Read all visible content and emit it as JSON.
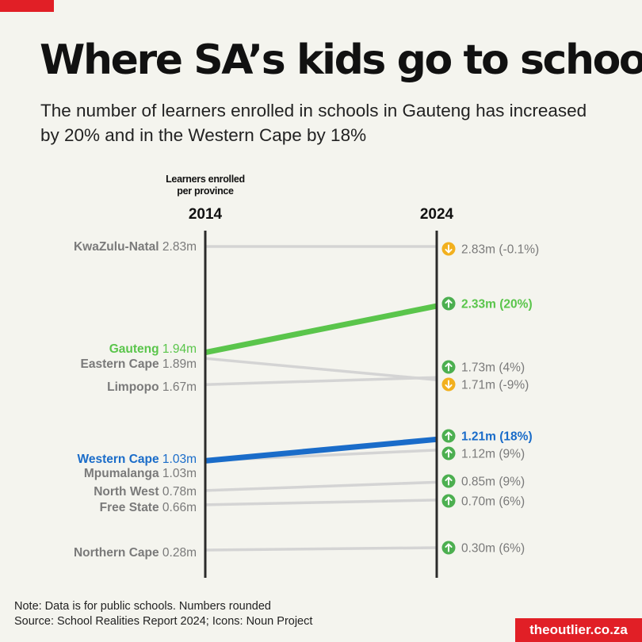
{
  "title": "Where SA’s kids go to school",
  "subtitle": "The number of learners enrolled in schools in Gauteng has increased by 20% and in the Western Cape by 18%",
  "note": "Note: Data is for public schools. Numbers rounded",
  "source": "Source: School Realities Report 2024; Icons: Noun Project",
  "brand": "theoutlier.co.za",
  "colors": {
    "background": "#f4f4ee",
    "axis": "#2b2b2b",
    "neutral_line": "#d4d4d4",
    "neutral_text": "#7a7a7a",
    "gauteng": "#5ac54b",
    "western_cape": "#1a6cc9",
    "up_icon": "#4caf50",
    "down_icon": "#f2b01e",
    "brand": "#e11f26"
  },
  "chart_data": {
    "type": "slope",
    "axis_caption": "Learners enrolled per province",
    "unit": "m",
    "x": [
      "2014",
      "2024"
    ],
    "ylim": [
      0.15,
      2.95
    ],
    "series": [
      {
        "name": "KwaZulu-Natal",
        "values": [
          2.83,
          2.83
        ],
        "label_2014": "2.83m",
        "label_2024": "2.83m (-0.1%)",
        "change": "down",
        "highlight": ""
      },
      {
        "name": "Gauteng",
        "values": [
          1.94,
          2.33
        ],
        "label_2014": "1.94m",
        "label_2024": "2.33m (20%)",
        "change": "up",
        "highlight": "gauteng"
      },
      {
        "name": "Eastern Cape",
        "values": [
          1.89,
          1.71
        ],
        "label_2014": "1.89m",
        "label_2024": "1.71m (-9%)",
        "change": "down",
        "highlight": ""
      },
      {
        "name": "Limpopo",
        "values": [
          1.67,
          1.73
        ],
        "label_2014": "1.67m",
        "label_2024": "1.73m (4%)",
        "change": "up",
        "highlight": ""
      },
      {
        "name": "Western Cape",
        "values": [
          1.03,
          1.21
        ],
        "label_2014": "1.03m",
        "label_2024": "1.21m (18%)",
        "change": "up",
        "highlight": "western_cape"
      },
      {
        "name": "Mpumalanga",
        "values": [
          1.03,
          1.12
        ],
        "label_2014": "1.03m",
        "label_2024": "1.12m (9%)",
        "change": "up",
        "highlight": ""
      },
      {
        "name": "North West",
        "values": [
          0.78,
          0.85
        ],
        "label_2014": "0.78m",
        "label_2024": "0.85m (9%)",
        "change": "up",
        "highlight": ""
      },
      {
        "name": "Free State",
        "values": [
          0.66,
          0.7
        ],
        "label_2014": "0.66m",
        "label_2024": "0.70m (6%)",
        "change": "up",
        "highlight": ""
      },
      {
        "name": "Northern Cape",
        "values": [
          0.28,
          0.3
        ],
        "label_2014": "0.28m",
        "label_2024": "0.30m (6%)",
        "change": "up",
        "highlight": ""
      }
    ]
  }
}
